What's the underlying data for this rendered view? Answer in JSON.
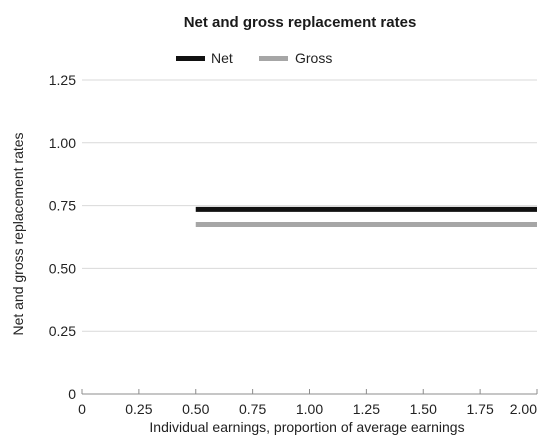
{
  "chart_data": {
    "type": "line",
    "title": "Net and gross replacement rates",
    "xlabel": "Individual earnings, proportion of average earnings",
    "ylabel": "Net and gross replacement rates",
    "xlim": [
      0,
      2.0
    ],
    "ylim": [
      0,
      1.25
    ],
    "x_ticks": [
      "0",
      "0.25",
      "0.50",
      "0.75",
      "1.00",
      "1.25",
      "1.50",
      "1.75",
      "2.00"
    ],
    "y_ticks": [
      "0",
      "0.25",
      "0.50",
      "0.75",
      "1.00",
      "1.25"
    ],
    "grid": true,
    "legend_position": "top-center",
    "series": [
      {
        "name": "Net",
        "color": "#111111",
        "x": [
          0.5,
          2.0
        ],
        "y": [
          0.735,
          0.735
        ]
      },
      {
        "name": "Gross",
        "color": "#a6a6a6",
        "x": [
          0.5,
          2.0
        ],
        "y": [
          0.675,
          0.675
        ]
      }
    ]
  }
}
